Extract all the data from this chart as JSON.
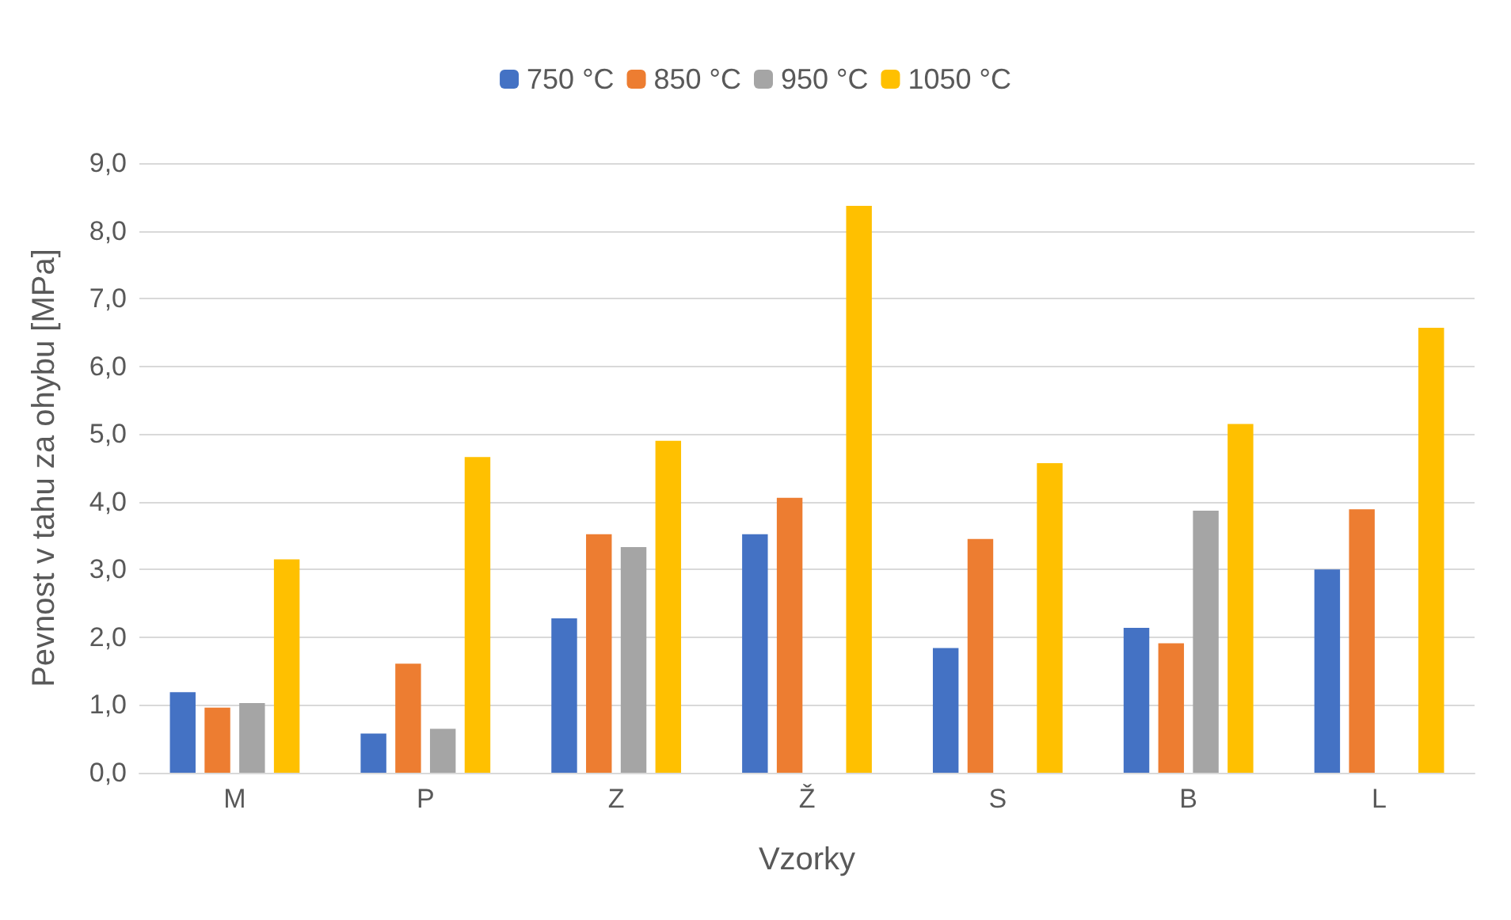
{
  "chart_data": {
    "type": "bar",
    "xlabel": "Vzorky",
    "ylabel": "Pevnost v tahu za ohybu [MPa]",
    "categories": [
      "M",
      "P",
      "Z",
      "Ž",
      "S",
      "B",
      "L"
    ],
    "series": [
      {
        "name": "750 °C",
        "color": "#4472c4",
        "values": [
          1.19,
          0.58,
          2.28,
          3.52,
          1.84,
          2.14,
          3.0
        ]
      },
      {
        "name": "850 °C",
        "color": "#ed7d31",
        "values": [
          0.96,
          1.61,
          3.52,
          4.06,
          3.45,
          1.91,
          3.89
        ]
      },
      {
        "name": "950 °C",
        "color": "#a5a5a5",
        "values": [
          1.03,
          0.65,
          3.33,
          null,
          null,
          3.87,
          null
        ]
      },
      {
        "name": "1050 °C",
        "color": "#ffc000",
        "values": [
          3.15,
          4.66,
          4.9,
          8.37,
          4.57,
          5.15,
          6.57
        ]
      }
    ],
    "ylim": [
      0,
      9
    ],
    "yticks": [
      {
        "value": 0,
        "label": "0,0"
      },
      {
        "value": 1,
        "label": "1,0"
      },
      {
        "value": 2,
        "label": "2,0"
      },
      {
        "value": 3,
        "label": "3,0"
      },
      {
        "value": 4,
        "label": "4,0"
      },
      {
        "value": 5,
        "label": "5,0"
      },
      {
        "value": 6,
        "label": "6,0"
      },
      {
        "value": 7,
        "label": "7,0"
      },
      {
        "value": 8,
        "label": "8,0"
      },
      {
        "value": 9,
        "label": "9,0"
      }
    ],
    "grid": "y",
    "legend": "top"
  }
}
